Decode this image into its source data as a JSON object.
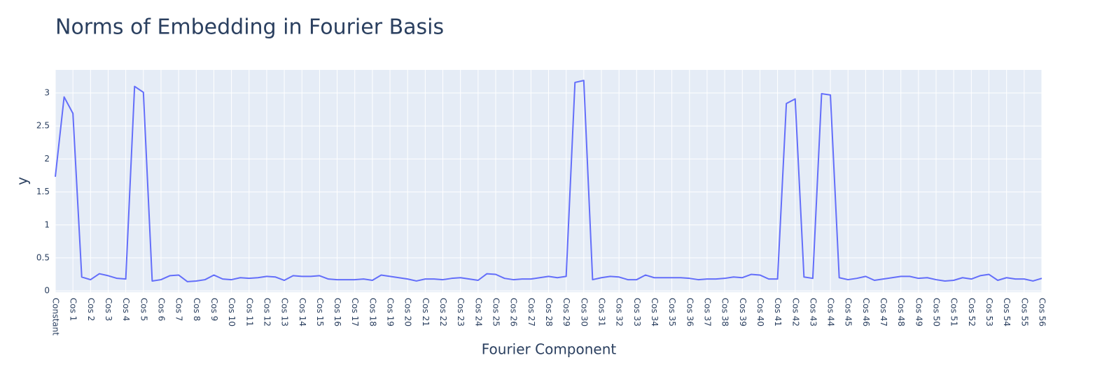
{
  "chart_data": {
    "type": "line",
    "title": "Norms of Embedding in Fourier Basis",
    "x_label": "Fourier Component",
    "y_label": "y",
    "color": "#636efa",
    "categories": [
      "Constant",
      null,
      "Cos 1",
      null,
      "Cos 2",
      null,
      "Cos 3",
      null,
      "Cos 4",
      null,
      "Cos 5",
      null,
      "Cos 6",
      null,
      "Cos 7",
      null,
      "Cos 8",
      null,
      "Cos 9",
      null,
      "Cos 10",
      null,
      "Cos 11",
      null,
      "Cos 12",
      null,
      "Cos 13",
      null,
      "Cos 14",
      null,
      "Cos 15",
      null,
      "Cos 16",
      null,
      "Cos 17",
      null,
      "Cos 18",
      null,
      "Cos 19",
      null,
      "Cos 20",
      null,
      "Cos 21",
      null,
      "Cos 22",
      null,
      "Cos 23",
      null,
      "Cos 24",
      null,
      "Cos 25",
      null,
      "Cos 26",
      null,
      "Cos 27",
      null,
      "Cos 28",
      null,
      "Cos 29",
      null,
      "Cos 30",
      null,
      "Cos 31",
      null,
      "Cos 32",
      null,
      "Cos 33",
      null,
      "Cos 34",
      null,
      "Cos 35",
      null,
      "Cos 36",
      null,
      "Cos 37",
      null,
      "Cos 38",
      null,
      "Cos 39",
      null,
      "Cos 40",
      null,
      "Cos 41",
      null,
      "Cos 42",
      null,
      "Cos 43",
      null,
      "Cos 44",
      null,
      "Cos 45",
      null,
      "Cos 46",
      null,
      "Cos 47",
      null,
      "Cos 48",
      null,
      "Cos 49",
      null,
      "Cos 50",
      null,
      "Cos 51",
      null,
      "Cos 52",
      null,
      "Cos 53",
      null,
      "Cos 54",
      null,
      "Cos 55",
      null,
      "Cos 56"
    ],
    "values": [
      1.73,
      2.94,
      2.69,
      0.21,
      0.17,
      0.26,
      0.23,
      0.19,
      0.18,
      3.1,
      3.01,
      0.15,
      0.17,
      0.23,
      0.24,
      0.14,
      0.15,
      0.17,
      0.24,
      0.18,
      0.17,
      0.2,
      0.19,
      0.2,
      0.22,
      0.21,
      0.16,
      0.23,
      0.22,
      0.22,
      0.23,
      0.18,
      0.17,
      0.17,
      0.17,
      0.18,
      0.16,
      0.24,
      0.22,
      0.2,
      0.18,
      0.15,
      0.18,
      0.18,
      0.17,
      0.19,
      0.2,
      0.18,
      0.16,
      0.26,
      0.25,
      0.19,
      0.17,
      0.18,
      0.18,
      0.2,
      0.22,
      0.2,
      0.22,
      3.16,
      3.19,
      0.17,
      0.2,
      0.22,
      0.21,
      0.17,
      0.17,
      0.24,
      0.2,
      0.2,
      0.2,
      0.2,
      0.19,
      0.17,
      0.18,
      0.18,
      0.19,
      0.21,
      0.2,
      0.25,
      0.24,
      0.18,
      0.18,
      2.84,
      2.91,
      0.21,
      0.19,
      2.99,
      2.97,
      0.2,
      0.17,
      0.19,
      0.22,
      0.16,
      0.18,
      0.2,
      0.22,
      0.22,
      0.19,
      0.2,
      0.17,
      0.15,
      0.16,
      0.2,
      0.18,
      0.23,
      0.25,
      0.16,
      0.2,
      0.18,
      0.18,
      0.15,
      0.19
    ],
    "ylim": [
      -0.02,
      3.35
    ],
    "yticks": [
      0,
      0.5,
      1,
      1.5,
      2,
      2.5,
      3
    ],
    "grid": true
  }
}
